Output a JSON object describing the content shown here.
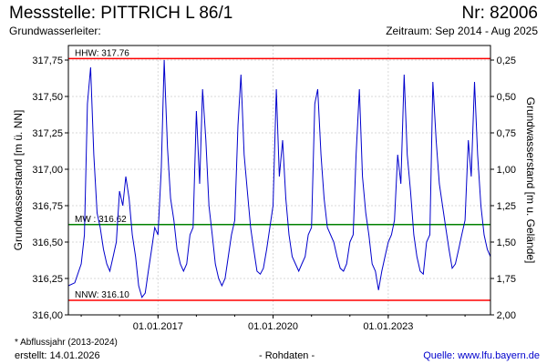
{
  "header": {
    "title": "Messstelle: PITTRICH L 86/1",
    "number": "Nr: 82006",
    "aquifer": "Grundwasserleiter:",
    "period": "Zeitraum: Sep 2014 - Aug 2025"
  },
  "footer": {
    "footnote": "* Abflussjahr (2013-2024)",
    "created": "erstellt:  14.01.2026",
    "raw_data": "- Rohdaten -",
    "source": "Quelle:  www.lfu.bayern.de"
  },
  "chart_data": {
    "type": "line",
    "ylabel": "Grundwasserstand [m ü. NN]",
    "ylabel_right": "Grundwasserstand [m u. Gelände]",
    "ylim": [
      316.0,
      317.85
    ],
    "xlim": [
      "2014-09-01",
      "2025-08-31"
    ],
    "yticks": [
      "316,00",
      "316,25",
      "316,50",
      "316,75",
      "317,00",
      "317,25",
      "317,50",
      "317,75"
    ],
    "yticks_right": [
      "0,25",
      "0,50",
      "0,75",
      "1,00",
      "1,25",
      "1,50",
      "1,75",
      "2,00"
    ],
    "xticks": [
      {
        "date": "2017-01-01",
        "label": "01.01.2017"
      },
      {
        "date": "2020-01-01",
        "label": "01.01.2020"
      },
      {
        "date": "2023-01-01",
        "label": "01.01.2023"
      }
    ],
    "grid": true,
    "colors": {
      "series": "#0000cc",
      "extreme": "#ff0000",
      "mean": "#008000"
    },
    "reference_lines": [
      {
        "label": "HHW: 317.76",
        "value": 317.76,
        "color": "#ff0000"
      },
      {
        "label": "MW : 316.62",
        "value": 316.62,
        "color": "#008000"
      },
      {
        "label": "NNW: 316.10",
        "value": 316.1,
        "color": "#ff0000"
      }
    ],
    "series": [
      {
        "x": [
          "2014-09-01",
          "2014-11-01",
          "2015-01-01",
          "2015-02-01",
          "2015-03-01",
          "2015-04-01",
          "2015-05-01",
          "2015-06-01",
          "2015-07-01",
          "2015-08-01",
          "2015-09-01",
          "2015-10-01",
          "2015-11-01",
          "2015-12-01",
          "2016-01-01",
          "2016-02-01",
          "2016-03-01",
          "2016-04-01",
          "2016-05-01",
          "2016-06-01",
          "2016-07-01",
          "2016-08-01",
          "2016-09-01",
          "2016-10-01",
          "2016-11-01",
          "2016-12-01",
          "2017-01-01",
          "2017-02-01",
          "2017-03-01",
          "2017-04-01",
          "2017-05-01",
          "2017-06-01",
          "2017-07-01",
          "2017-08-01",
          "2017-09-01",
          "2017-10-01",
          "2017-11-01",
          "2017-12-01",
          "2018-01-01",
          "2018-02-01",
          "2018-03-01",
          "2018-04-01",
          "2018-05-01",
          "2018-06-01",
          "2018-07-01",
          "2018-08-01",
          "2018-09-01",
          "2018-10-01",
          "2018-11-01",
          "2018-12-01",
          "2019-01-01",
          "2019-02-01",
          "2019-03-01",
          "2019-04-01",
          "2019-05-01",
          "2019-06-01",
          "2019-07-01",
          "2019-08-01",
          "2019-09-01",
          "2019-10-01",
          "2019-11-01",
          "2019-12-01",
          "2020-01-01",
          "2020-02-01",
          "2020-03-01",
          "2020-04-01",
          "2020-05-01",
          "2020-06-01",
          "2020-07-01",
          "2020-08-01",
          "2020-09-01",
          "2020-10-01",
          "2020-11-01",
          "2020-12-01",
          "2021-01-01",
          "2021-02-01",
          "2021-03-01",
          "2021-04-01",
          "2021-05-01",
          "2021-06-01",
          "2021-07-01",
          "2021-08-01",
          "2021-09-01",
          "2021-10-01",
          "2021-11-01",
          "2021-12-01",
          "2022-01-01",
          "2022-02-01",
          "2022-03-01",
          "2022-04-01",
          "2022-05-01",
          "2022-06-01",
          "2022-07-01",
          "2022-08-01",
          "2022-09-01",
          "2022-10-01",
          "2022-11-01",
          "2022-12-01",
          "2023-01-01",
          "2023-02-01",
          "2023-03-01",
          "2023-04-01",
          "2023-05-01",
          "2023-06-01",
          "2023-07-01",
          "2023-08-01",
          "2023-09-01",
          "2023-10-01",
          "2023-11-01",
          "2023-12-01",
          "2024-01-01",
          "2024-02-01",
          "2024-03-01",
          "2024-04-01",
          "2024-05-01",
          "2024-06-01",
          "2024-07-01",
          "2024-08-01",
          "2024-09-01",
          "2024-10-01",
          "2024-11-01",
          "2024-12-01",
          "2025-01-01",
          "2025-02-01",
          "2025-03-01",
          "2025-04-01",
          "2025-05-01",
          "2025-06-01",
          "2025-07-01",
          "2025-08-01",
          "2025-08-31"
        ],
        "y": [
          316.2,
          316.22,
          316.35,
          316.55,
          317.45,
          317.7,
          317.1,
          316.7,
          316.6,
          316.45,
          316.35,
          316.3,
          316.4,
          316.5,
          316.85,
          316.75,
          316.95,
          316.8,
          316.55,
          316.4,
          316.2,
          316.12,
          316.15,
          316.3,
          316.45,
          316.6,
          316.55,
          317.0,
          317.75,
          317.15,
          316.8,
          316.65,
          316.45,
          316.35,
          316.3,
          316.35,
          316.55,
          316.6,
          317.4,
          316.9,
          317.55,
          317.2,
          316.75,
          316.55,
          316.35,
          316.25,
          316.2,
          316.25,
          316.4,
          316.55,
          316.65,
          317.3,
          317.65,
          317.1,
          316.85,
          316.6,
          316.45,
          316.3,
          316.28,
          316.32,
          316.45,
          316.6,
          316.75,
          317.55,
          316.95,
          317.2,
          316.8,
          316.55,
          316.4,
          316.35,
          316.3,
          316.35,
          316.4,
          316.55,
          316.6,
          317.45,
          317.55,
          317.1,
          316.8,
          316.6,
          316.55,
          316.5,
          316.4,
          316.32,
          316.3,
          316.35,
          316.5,
          316.55,
          317.1,
          317.55,
          316.95,
          316.7,
          316.55,
          316.35,
          316.3,
          316.17,
          316.3,
          316.4,
          316.5,
          316.55,
          316.65,
          317.1,
          316.9,
          317.65,
          317.1,
          316.85,
          316.55,
          316.4,
          316.3,
          316.28,
          316.5,
          316.55,
          317.6,
          317.2,
          316.9,
          316.75,
          316.6,
          316.45,
          316.32,
          316.35,
          316.45,
          316.55,
          316.65,
          317.2,
          316.95,
          317.6,
          317.1,
          316.75,
          316.55,
          316.45,
          316.4
        ]
      }
    ]
  }
}
